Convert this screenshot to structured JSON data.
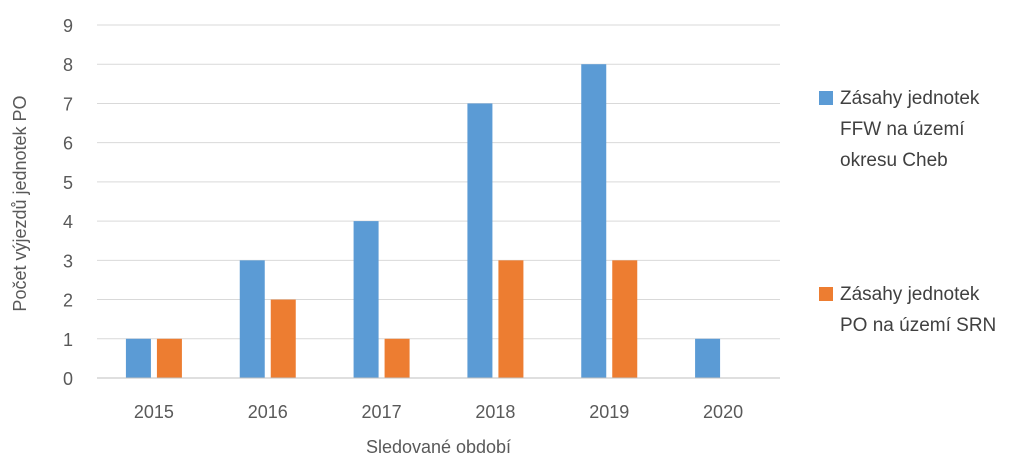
{
  "chart_data": {
    "type": "bar",
    "categories": [
      "2015",
      "2016",
      "2017",
      "2018",
      "2019",
      "2020"
    ],
    "series": [
      {
        "name": "Zásahy jednotek FFW na území okresu Cheb",
        "name_lines": [
          "Zásahy jednotek",
          "FFW na území",
          "okresu Cheb"
        ],
        "color": "#5B9BD5",
        "values": [
          1,
          3,
          4,
          7,
          8,
          1
        ]
      },
      {
        "name": "Zásahy jednotek PO na území SRN",
        "name_lines": [
          "Zásahy jednotek",
          "PO na území SRN"
        ],
        "color": "#ED7D31",
        "values": [
          1,
          2,
          1,
          3,
          3,
          0
        ]
      }
    ],
    "y_ticks": [
      "0",
      "1",
      "2",
      "3",
      "4",
      "5",
      "6",
      "7",
      "8",
      "9"
    ],
    "ylim": [
      0,
      9
    ],
    "xlabel": "Sledované období",
    "ylabel": "Počet výjezdů jednotek PO",
    "grid": true,
    "legend": "right"
  }
}
